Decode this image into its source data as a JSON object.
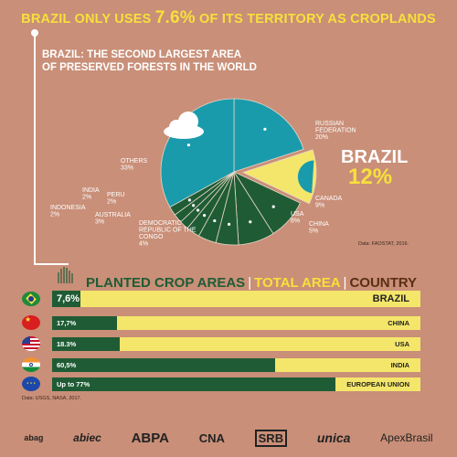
{
  "headline": {
    "pre": "BRAZIL ONLY USES ",
    "value": "7.6%",
    "post": " OF ITS TERRITORY AS CROPLANDS"
  },
  "pie_subtitle": {
    "line1": "BRAZIL: THE SECOND LARGEST AREA",
    "line2": "OF PRESERVED FORESTS IN THE WORLD"
  },
  "pie_source": "Data: FAOSTAT, 2016.",
  "colors": {
    "background": "#c98f78",
    "teal": "#1a9bac",
    "dark_green": "#1f5c35",
    "yellow": "#f4e66a",
    "headline": "#f7e03c",
    "brown": "#5a2e15"
  },
  "chart_data": [
    {
      "type": "pie",
      "title": "BRAZIL: THE SECOND LARGEST AREA OF PRESERVED FORESTS IN THE WORLD",
      "slices": [
        {
          "name": "RUSSIAN FEDERATION",
          "value": 20,
          "label": "20%"
        },
        {
          "name": "BRAZIL",
          "value": 12,
          "label": "12%"
        },
        {
          "name": "CANADA",
          "value": 9,
          "label": "9%"
        },
        {
          "name": "USA",
          "value": 8,
          "label": "8%"
        },
        {
          "name": "CHINA",
          "value": 5,
          "label": "5%"
        },
        {
          "name": "DEMOCRATIC REPUBLIC OF THE CONGO",
          "value": 4,
          "label": "4%"
        },
        {
          "name": "AUSTRALIA",
          "value": 3,
          "label": "3%"
        },
        {
          "name": "INDONESIA",
          "value": 2,
          "label": "2%"
        },
        {
          "name": "PERU",
          "value": 2,
          "label": "2%"
        },
        {
          "name": "INDIA",
          "value": 2,
          "label": "2%"
        },
        {
          "name": "OTHERS",
          "value": 33,
          "label": "33%"
        }
      ],
      "highlight": "BRAZIL"
    },
    {
      "type": "bar",
      "orientation": "horizontal",
      "legend": [
        "PLANTED CROP AREAS",
        "TOTAL AREA",
        "COUNTRY"
      ],
      "categories": [
        "BRAZIL",
        "CHINA",
        "USA",
        "INDIA",
        "EUROPEAN UNION"
      ],
      "values": [
        7.6,
        17.7,
        18.3,
        60.5,
        77
      ],
      "value_labels": [
        "7,6%",
        "17,7%",
        "18.3%",
        "60,5%",
        "Up to 77%"
      ],
      "xlim": [
        0,
        100
      ]
    }
  ],
  "bars_source": "Data: USGS, NASA, 2017.",
  "logos": [
    "abag",
    "abiec",
    "ABPA",
    "CNA",
    "SRB",
    "unica",
    "ApexBrasil"
  ]
}
